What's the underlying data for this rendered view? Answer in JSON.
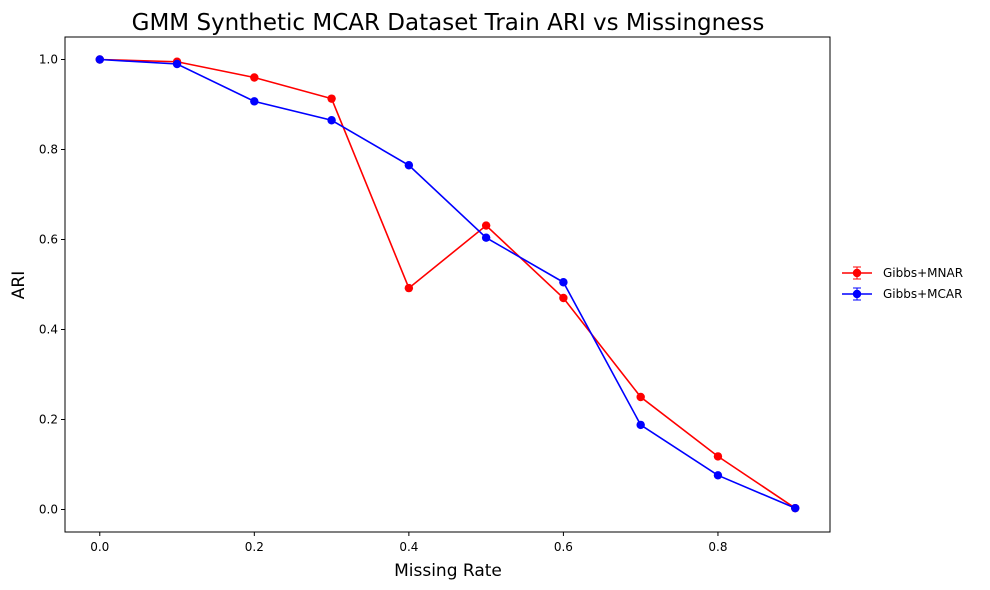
{
  "chart_data": {
    "type": "line",
    "title": "GMM Synthetic MCAR Dataset Train ARI vs Missingness",
    "xlabel": "Missing Rate",
    "ylabel": "ARI",
    "x": [
      0.0,
      0.1,
      0.2,
      0.3,
      0.4,
      0.5,
      0.6,
      0.7,
      0.8,
      0.9
    ],
    "xlim": [
      -0.045,
      0.945
    ],
    "ylim": [
      -0.05,
      1.05
    ],
    "xticks": [
      "0.0",
      "0.2",
      "0.4",
      "0.6",
      "0.8"
    ],
    "xtick_values": [
      0.0,
      0.2,
      0.4,
      0.6,
      0.8
    ],
    "yticks": [
      "0.0",
      "0.2",
      "0.4",
      "0.6",
      "0.8",
      "1.0"
    ],
    "ytick_values": [
      0.0,
      0.2,
      0.4,
      0.6,
      0.8,
      1.0
    ],
    "grid": false,
    "legend_position": "right-outside",
    "series": [
      {
        "name": "Gibbs+MNAR",
        "color": "#ff0000",
        "values": [
          1.0,
          0.995,
          0.96,
          0.913,
          0.492,
          0.631,
          0.47,
          0.25,
          0.118,
          0.003
        ]
      },
      {
        "name": "Gibbs+MCAR",
        "color": "#0000ff",
        "values": [
          1.0,
          0.99,
          0.907,
          0.865,
          0.765,
          0.604,
          0.505,
          0.188,
          0.076,
          0.003
        ]
      }
    ]
  }
}
